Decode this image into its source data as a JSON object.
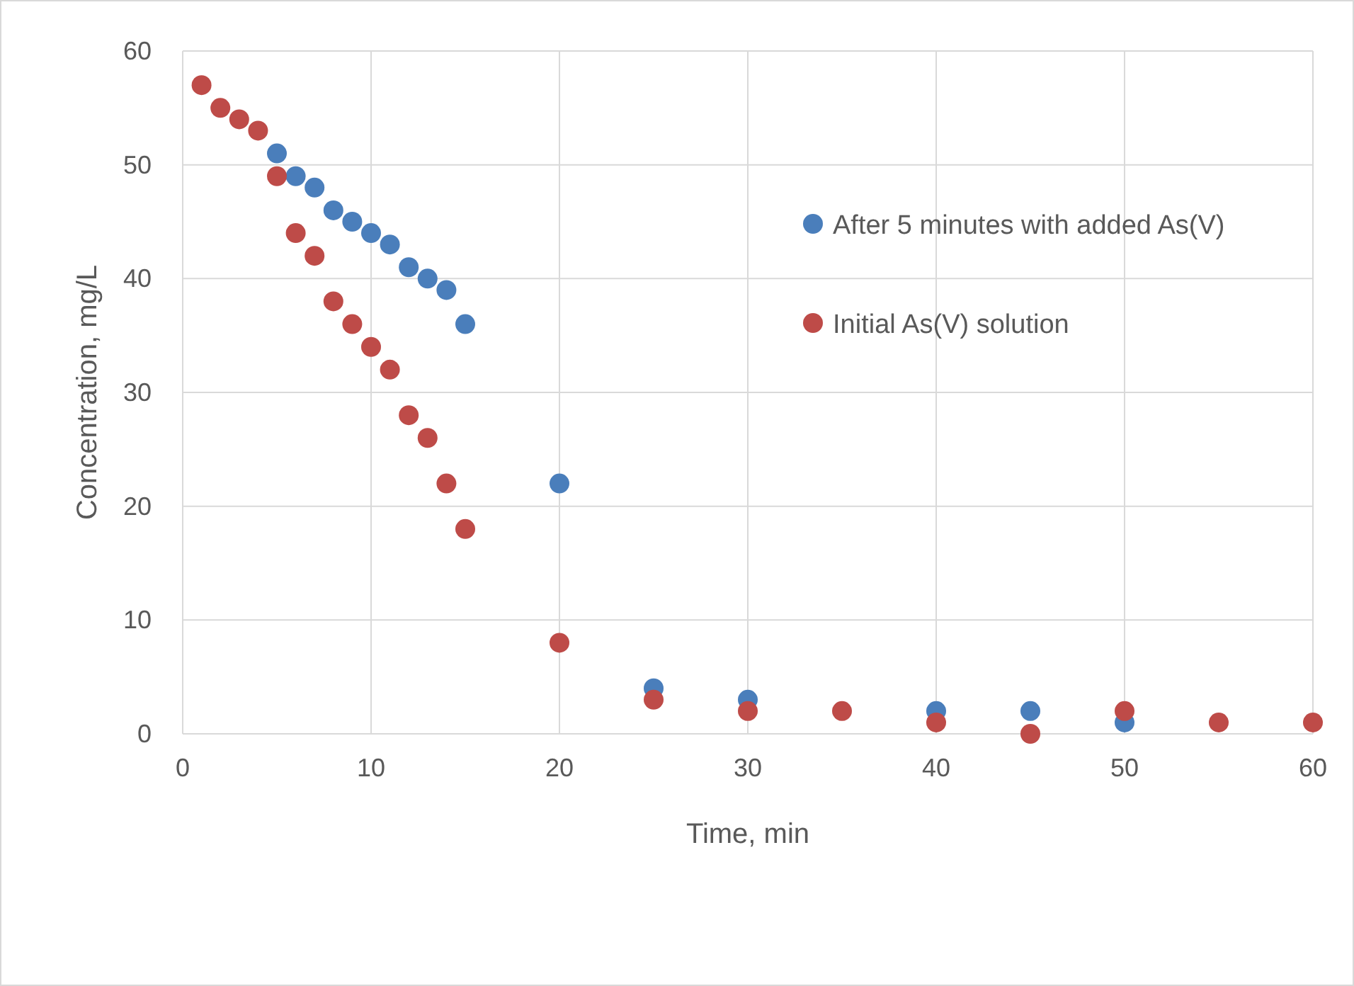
{
  "chart_data": {
    "type": "scatter",
    "xlabel": "Time, min",
    "ylabel": "Concentration, mg/L",
    "xlim": [
      0,
      60
    ],
    "xticks": [
      0,
      10,
      20,
      30,
      40,
      50,
      60
    ],
    "ylim": [
      0,
      60
    ],
    "yticks": [
      0,
      10,
      20,
      30,
      40,
      50,
      60
    ],
    "grid": true,
    "legend": "right",
    "marker": "circle",
    "series": [
      {
        "name": "After 5 minutes with added As(V)",
        "color": "#4a7ebb",
        "x": [
          5,
          6,
          7,
          8,
          9,
          10,
          11,
          12,
          13,
          14,
          15,
          20,
          25,
          30,
          40,
          45,
          50
        ],
        "values": [
          51,
          49,
          48,
          46,
          45,
          44,
          43,
          41,
          40,
          39,
          36,
          22,
          4,
          3,
          2,
          2,
          1
        ]
      },
      {
        "name": "Initial As(V) solution",
        "color": "#be4b48",
        "x": [
          1,
          2,
          3,
          4,
          5,
          6,
          7,
          8,
          9,
          10,
          11,
          12,
          13,
          14,
          15,
          20,
          25,
          30,
          35,
          40,
          45,
          50,
          55,
          60
        ],
        "values": [
          57,
          55,
          54,
          53,
          49,
          44,
          42,
          38,
          36,
          34,
          32,
          28,
          26,
          22,
          18,
          8,
          3,
          2,
          2,
          1,
          0,
          2,
          1,
          1
        ]
      }
    ]
  }
}
